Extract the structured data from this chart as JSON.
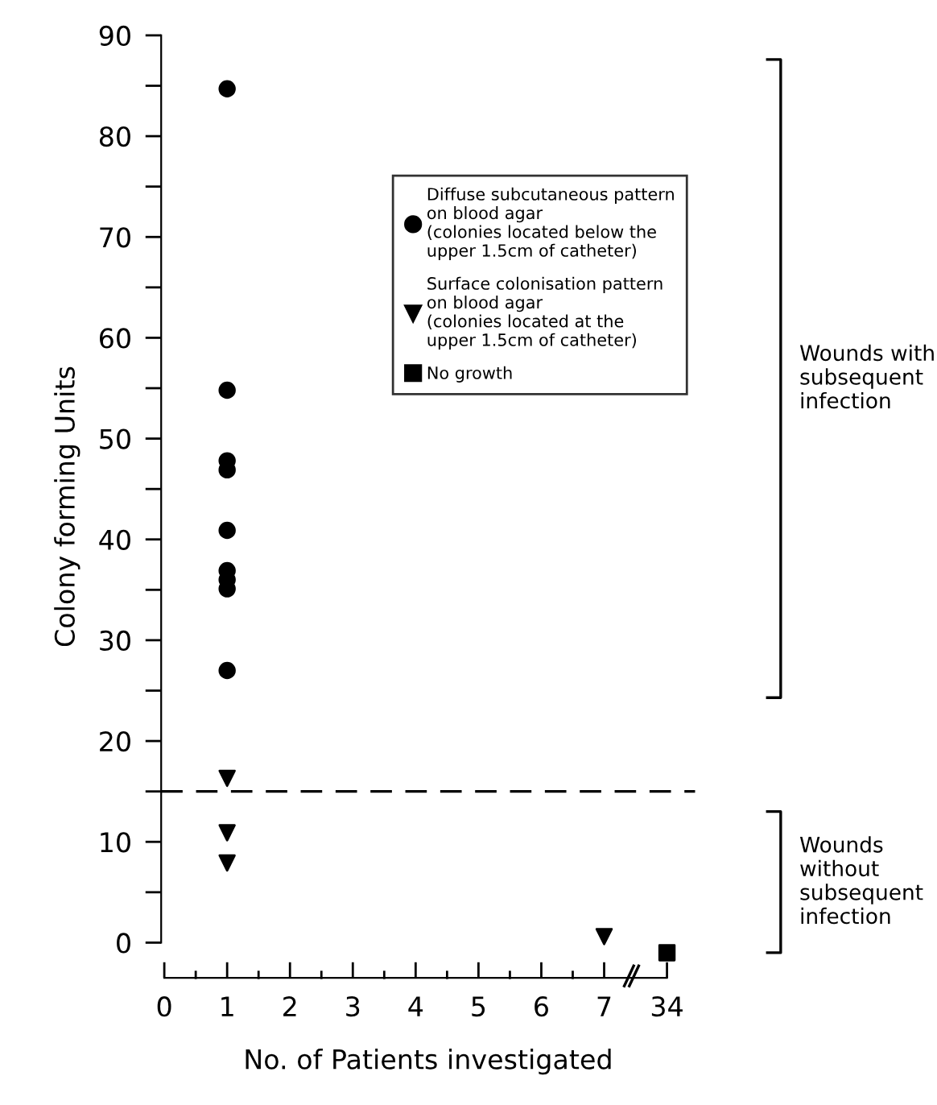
{
  "chart_data": {
    "type": "scatter",
    "xlabel": "No. of Patients investigated",
    "ylabel": "Colony forming Units",
    "categories": [
      "0",
      "1",
      "2",
      "3",
      "4",
      "5",
      "6",
      "7",
      "34"
    ],
    "series": [
      {
        "name": "Diffuse subcutaneous pattern\non blood agar\n(colonies located below the\nupper 1.5cm of catheter)",
        "color": "#000000",
        "marker": "circle",
        "x": [
          "1",
          "1",
          "1",
          "1",
          "1",
          "1",
          "1",
          "1",
          "1"
        ],
        "values": [
          84.7,
          54.8,
          47.8,
          46.9,
          40.9,
          36.9,
          36.0,
          35.1,
          27.0
        ]
      },
      {
        "name": "Surface colonisation pattern\non blood agar\n(colonies located at the\nupper 1.5cm of catheter)",
        "color": "#000000",
        "marker": "triangle",
        "x": [
          "1",
          "1",
          "1",
          "7"
        ],
        "values": [
          16.3,
          10.9,
          7.9,
          0.6
        ]
      },
      {
        "name": "No growth",
        "color": "#000000",
        "marker": "square",
        "x": [
          "34"
        ],
        "values": [
          -1
        ]
      }
    ],
    "ylim": [
      -3.5,
      90
    ],
    "yticks": [
      0,
      {
        "value": 5,
        "label": null
      },
      10,
      {
        "value": 15,
        "label": null
      },
      20,
      {
        "value": 25,
        "label": null
      },
      30,
      {
        "value": 35,
        "label": null
      },
      40,
      {
        "value": 45,
        "label": null
      },
      50,
      {
        "value": 55,
        "label": null
      },
      60,
      {
        "value": 65,
        "label": null
      },
      70,
      {
        "value": 75,
        "label": null
      },
      80,
      {
        "value": 85,
        "label": null
      },
      90
    ],
    "ref_lines": [
      {
        "axis": "y",
        "value": 15,
        "color": "#000000",
        "line_style": "dashed"
      }
    ],
    "annotations": [
      "Wounds with\nsubsequent\ninfection",
      "Wounds\nwithout\nsubsequent\ninfection"
    ],
    "legend": "top right",
    "grid": false
  }
}
